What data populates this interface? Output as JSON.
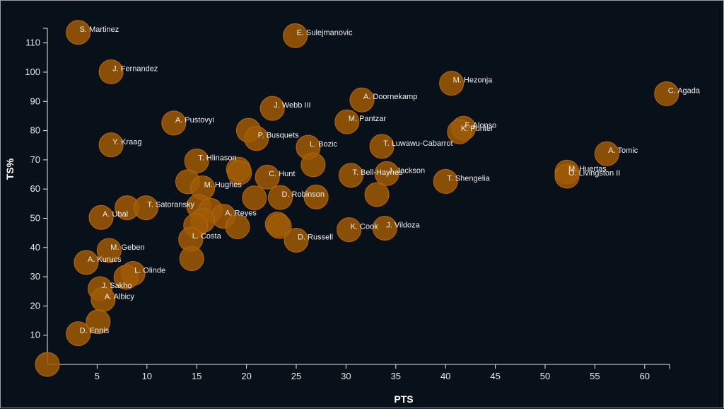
{
  "colors": {
    "background": "#08101a",
    "bubble": "#a05a05",
    "text": "#f0f0f0",
    "axis": "#e8e8e8"
  },
  "chart_data": {
    "type": "scatter",
    "title": "",
    "xlabel": "PTS",
    "ylabel": "TS%",
    "xlim": [
      0,
      62.5
    ],
    "ylim": [
      0,
      115
    ],
    "xticks": [
      5,
      10,
      15,
      20,
      25,
      30,
      35,
      40,
      45,
      50,
      55,
      60
    ],
    "yticks": [
      10,
      20,
      30,
      40,
      50,
      60,
      70,
      80,
      90,
      100,
      110
    ],
    "points": [
      {
        "x": 0,
        "y": 0,
        "label": ""
      },
      {
        "x": 3.1,
        "y": 113.6,
        "label": "S. Martinez"
      },
      {
        "x": 24.9,
        "y": 112.5,
        "label": "E. Sulejmanovic"
      },
      {
        "x": 6.4,
        "y": 100.1,
        "label": "J. Fernandez"
      },
      {
        "x": 40.6,
        "y": 96.2,
        "label": "M. Hezonja"
      },
      {
        "x": 62.2,
        "y": 92.6,
        "label": "C. Agada"
      },
      {
        "x": 31.6,
        "y": 90.5,
        "label": "A. Doornekamp"
      },
      {
        "x": 22.6,
        "y": 87.6,
        "label": "J. Webb III"
      },
      {
        "x": 12.7,
        "y": 82.6,
        "label": "A. Pustovyi"
      },
      {
        "x": 30.1,
        "y": 83.0,
        "label": "M. Pantzar"
      },
      {
        "x": 41.8,
        "y": 80.8,
        "label": "F. Alonso"
      },
      {
        "x": 41.4,
        "y": 79.6,
        "label": "K. Punter"
      },
      {
        "x": 20.2,
        "y": 80.1,
        "label": ""
      },
      {
        "x": 21.0,
        "y": 77.3,
        "label": "P. Busquets"
      },
      {
        "x": 6.4,
        "y": 75.1,
        "label": "Y. Kraag"
      },
      {
        "x": 26.2,
        "y": 74.3,
        "label": "L. Bozic"
      },
      {
        "x": 33.6,
        "y": 74.6,
        "label": "T. Luwawu-Cabarrot"
      },
      {
        "x": 56.2,
        "y": 72.1,
        "label": "A. Tomic"
      },
      {
        "x": 15.0,
        "y": 69.6,
        "label": "T. Hlinason"
      },
      {
        "x": 26.7,
        "y": 68.3,
        "label": ""
      },
      {
        "x": 19.2,
        "y": 66.8,
        "label": ""
      },
      {
        "x": 19.3,
        "y": 65.6,
        "label": ""
      },
      {
        "x": 52.2,
        "y": 65.8,
        "label": "M. Huertas"
      },
      {
        "x": 52.2,
        "y": 64.4,
        "label": "O. Livingston II"
      },
      {
        "x": 22.1,
        "y": 64.1,
        "label": "C. Hunt"
      },
      {
        "x": 30.5,
        "y": 64.7,
        "label": "T. Bell-Haynes"
      },
      {
        "x": 34.1,
        "y": 65.3,
        "label": "J. Jackson"
      },
      {
        "x": 40.0,
        "y": 62.6,
        "label": "T. Shengelia"
      },
      {
        "x": 14.1,
        "y": 62.5,
        "label": ""
      },
      {
        "x": 15.6,
        "y": 60.4,
        "label": "M. Hughes"
      },
      {
        "x": 33.1,
        "y": 58.1,
        "label": ""
      },
      {
        "x": 20.8,
        "y": 57.0,
        "label": ""
      },
      {
        "x": 23.4,
        "y": 57.1,
        "label": "D. Robinson"
      },
      {
        "x": 27.0,
        "y": 57.3,
        "label": ""
      },
      {
        "x": 8.0,
        "y": 53.6,
        "label": ""
      },
      {
        "x": 9.9,
        "y": 53.6,
        "label": "T. Satoransky"
      },
      {
        "x": 15.2,
        "y": 54.1,
        "label": ""
      },
      {
        "x": 16.4,
        "y": 52.7,
        "label": ""
      },
      {
        "x": 5.4,
        "y": 50.3,
        "label": "A. Ubal"
      },
      {
        "x": 17.7,
        "y": 50.7,
        "label": "A. Reyes"
      },
      {
        "x": 15.6,
        "y": 49.2,
        "label": ""
      },
      {
        "x": 14.9,
        "y": 47.5,
        "label": ""
      },
      {
        "x": 19.1,
        "y": 47.1,
        "label": ""
      },
      {
        "x": 23.1,
        "y": 48.0,
        "label": ""
      },
      {
        "x": 23.3,
        "y": 47.2,
        "label": ""
      },
      {
        "x": 33.9,
        "y": 46.6,
        "label": "J. Vildoza"
      },
      {
        "x": 30.3,
        "y": 46.1,
        "label": "K. Cook"
      },
      {
        "x": 14.4,
        "y": 42.8,
        "label": "L. Costa"
      },
      {
        "x": 25.0,
        "y": 42.5,
        "label": "D. Russell"
      },
      {
        "x": 6.2,
        "y": 39.0,
        "label": "M. Geben"
      },
      {
        "x": 14.5,
        "y": 36.2,
        "label": ""
      },
      {
        "x": 3.9,
        "y": 34.9,
        "label": "A. Kurucs"
      },
      {
        "x": 8.6,
        "y": 31.1,
        "label": "L. Olinde"
      },
      {
        "x": 7.9,
        "y": 29.8,
        "label": ""
      },
      {
        "x": 5.3,
        "y": 25.9,
        "label": "J. Sakho"
      },
      {
        "x": 5.6,
        "y": 22.2,
        "label": "A. Albicy"
      },
      {
        "x": 5.1,
        "y": 14.6,
        "label": ""
      },
      {
        "x": 3.1,
        "y": 10.5,
        "label": "D. Ennis"
      }
    ]
  }
}
